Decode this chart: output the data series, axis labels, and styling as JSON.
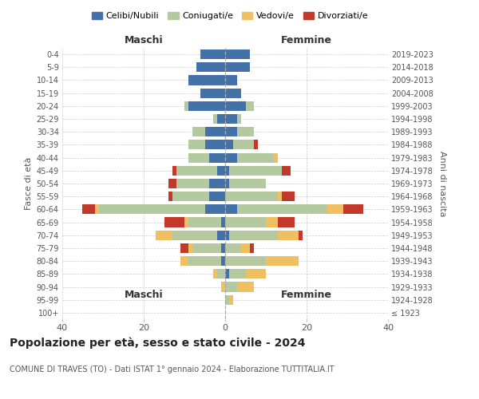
{
  "age_groups": [
    "100+",
    "95-99",
    "90-94",
    "85-89",
    "80-84",
    "75-79",
    "70-74",
    "65-69",
    "60-64",
    "55-59",
    "50-54",
    "45-49",
    "40-44",
    "35-39",
    "30-34",
    "25-29",
    "20-24",
    "15-19",
    "10-14",
    "5-9",
    "0-4"
  ],
  "birth_years": [
    "≤ 1923",
    "1924-1928",
    "1929-1933",
    "1934-1938",
    "1939-1943",
    "1944-1948",
    "1949-1953",
    "1954-1958",
    "1959-1963",
    "1964-1968",
    "1969-1973",
    "1974-1978",
    "1979-1983",
    "1984-1988",
    "1989-1993",
    "1994-1998",
    "1999-2003",
    "2004-2008",
    "2009-2013",
    "2014-2018",
    "2019-2023"
  ],
  "colors": {
    "celibi": "#4472a8",
    "coniugati": "#b5c9a0",
    "vedovi": "#f0c060",
    "divorziati": "#c0392b"
  },
  "maschi": {
    "celibi": [
      0,
      0,
      0,
      0,
      1,
      1,
      2,
      1,
      5,
      4,
      4,
      2,
      4,
      5,
      5,
      2,
      9,
      6,
      9,
      7,
      6
    ],
    "coniugati": [
      0,
      0,
      0,
      2,
      8,
      7,
      11,
      8,
      26,
      9,
      8,
      10,
      5,
      4,
      3,
      1,
      1,
      0,
      0,
      0,
      0
    ],
    "vedovi": [
      0,
      0,
      1,
      1,
      2,
      1,
      4,
      1,
      1,
      0,
      0,
      0,
      0,
      0,
      0,
      0,
      0,
      0,
      0,
      0,
      0
    ],
    "divorziati": [
      0,
      0,
      0,
      0,
      0,
      2,
      0,
      5,
      3,
      1,
      2,
      1,
      0,
      0,
      0,
      0,
      0,
      0,
      0,
      0,
      0
    ]
  },
  "femmine": {
    "celibi": [
      0,
      0,
      0,
      1,
      0,
      0,
      1,
      0,
      3,
      0,
      1,
      1,
      3,
      2,
      3,
      3,
      5,
      4,
      3,
      6,
      6
    ],
    "coniugati": [
      0,
      1,
      3,
      4,
      10,
      4,
      12,
      10,
      22,
      13,
      9,
      13,
      9,
      5,
      4,
      1,
      2,
      0,
      0,
      0,
      0
    ],
    "vedovi": [
      0,
      1,
      4,
      5,
      8,
      2,
      5,
      3,
      4,
      1,
      0,
      0,
      1,
      0,
      0,
      0,
      0,
      0,
      0,
      0,
      0
    ],
    "divorziati": [
      0,
      0,
      0,
      0,
      0,
      1,
      1,
      4,
      5,
      3,
      0,
      2,
      0,
      1,
      0,
      0,
      0,
      0,
      0,
      0,
      0
    ]
  },
  "title_main": "Popolazione per età, sesso e stato civile - 2024",
  "title_sub": "COMUNE DI TRAVES (TO) - Dati ISTAT 1° gennaio 2024 - Elaborazione TUTTITALIA.IT",
  "xlabel_left": "Maschi",
  "xlabel_right": "Femmine",
  "ylabel_left": "Fasce di età",
  "ylabel_right": "Anni di nascita",
  "xlim": 40,
  "legend_labels": [
    "Celibi/Nubili",
    "Coniugati/e",
    "Vedovi/e",
    "Divorziati/e"
  ],
  "bg_color": "#ffffff",
  "grid_color": "#cccccc"
}
